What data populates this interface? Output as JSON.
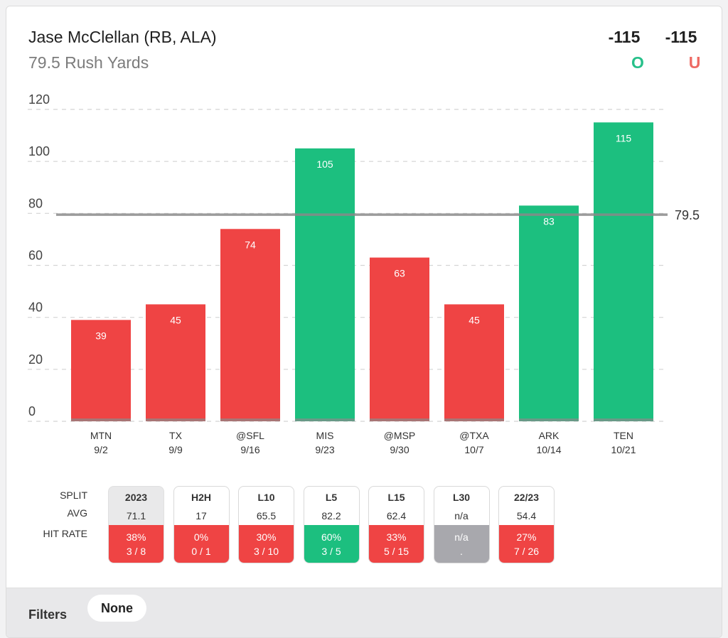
{
  "header": {
    "title": "Jase McClellan (RB, ALA)",
    "subtitle": "79.5 Rush Yards"
  },
  "odds": {
    "over_price": "-115",
    "under_price": "-115",
    "over_label": "O",
    "under_label": "U"
  },
  "colors": {
    "over": "#1cbf7f",
    "under": "#ef4444",
    "neutral": "#a8a8ad",
    "line": "#8a8a8a"
  },
  "chart_data": {
    "type": "bar",
    "categories": [
      "MTN",
      "TX",
      "@SFL",
      "MIS",
      "@MSP",
      "@TXA",
      "ARK",
      "TEN"
    ],
    "dates": [
      "9/2",
      "9/9",
      "9/16",
      "9/23",
      "9/30",
      "10/7",
      "10/14",
      "10/21"
    ],
    "values": [
      39,
      45,
      74,
      105,
      63,
      45,
      83,
      115
    ],
    "result": [
      "under",
      "under",
      "under",
      "over",
      "under",
      "under",
      "over",
      "over"
    ],
    "ylim": [
      0,
      120
    ],
    "yticks": [
      0,
      20,
      40,
      60,
      80,
      100,
      120
    ],
    "threshold": 79.5,
    "threshold_label": "79.5",
    "grid": true
  },
  "splits": {
    "row_labels": [
      "SPLIT",
      "AVG",
      "HIT RATE"
    ],
    "columns": [
      {
        "label": "2023",
        "avg": "71.1",
        "pct": "38%",
        "record": "3 / 8",
        "status": "under",
        "active": true
      },
      {
        "label": "H2H",
        "avg": "17",
        "pct": "0%",
        "record": "0 / 1",
        "status": "under",
        "active": false
      },
      {
        "label": "L10",
        "avg": "65.5",
        "pct": "30%",
        "record": "3 / 10",
        "status": "under",
        "active": false
      },
      {
        "label": "L5",
        "avg": "82.2",
        "pct": "60%",
        "record": "3 / 5",
        "status": "over",
        "active": false
      },
      {
        "label": "L15",
        "avg": "62.4",
        "pct": "33%",
        "record": "5 / 15",
        "status": "under",
        "active": false
      },
      {
        "label": "L30",
        "avg": "n/a",
        "pct": "n/a",
        "record": ".",
        "status": "neutral",
        "active": false
      },
      {
        "label": "22/23",
        "avg": "54.4",
        "pct": "27%",
        "record": "7 / 26",
        "status": "under",
        "active": false
      }
    ]
  },
  "filters": {
    "label": "Filters",
    "value": "None"
  }
}
